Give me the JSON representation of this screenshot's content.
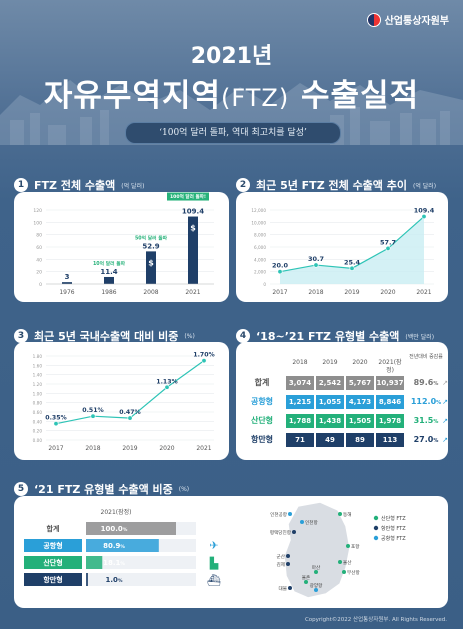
{
  "ministry": "산업통상자원부",
  "year_title": "2021년",
  "main_title_a": "자유무역지역",
  "main_title_b": "(FTZ)",
  "main_title_c": " 수출실적",
  "subtitle": "‘100억 달러 돌파, 역대 최고치를 달성’",
  "copyright": "Copyright©2022 산업통상자원부. All Rights Reserved.",
  "sections": [
    {
      "num": "1",
      "title": "FTZ 전체 수출액",
      "unit": "(억 달러)"
    },
    {
      "num": "2",
      "title": "최근 5년 FTZ 전체 수출액 추이",
      "unit": "(억 달러)"
    },
    {
      "num": "3",
      "title": "최근 5년 국내수출액 대비 비중",
      "unit": "(%)"
    },
    {
      "num": "4",
      "title": "‘18~’21 FTZ 유형별 수출액",
      "unit": "(백만 달러)"
    },
    {
      "num": "5",
      "title": "‘21 FTZ 유형별 수출액 비중",
      "unit": "(%)"
    }
  ],
  "chart_data": [
    {
      "type": "bar",
      "categories": [
        "1976",
        "1986",
        "2008",
        "2021"
      ],
      "values": [
        3,
        11.4,
        52.9,
        109.4
      ],
      "value_labels": [
        "3",
        "11.4",
        "52.9",
        "109.4"
      ],
      "ylim": [
        0,
        120
      ],
      "yticks": [
        "0",
        "20",
        "40",
        "60",
        "80",
        "100",
        "120"
      ],
      "annotations": [
        {
          "category": "1986",
          "text": "10억 달러 돌파"
        },
        {
          "category": "2008",
          "text": "50억 달러 돌파"
        },
        {
          "category": "2021",
          "text": "100억 달러 돌파!"
        }
      ],
      "colors": {
        "bar": "#1f3f68",
        "accent": "#27b27a"
      }
    },
    {
      "type": "area",
      "categories": [
        "2017",
        "2018",
        "2019",
        "2020",
        "2021"
      ],
      "values": [
        20.0,
        30.7,
        25.4,
        57.7,
        109.4
      ],
      "value_labels": [
        "20.0",
        "30.7",
        "25.4",
        "57.7",
        "109.4"
      ],
      "ylim": [
        0,
        120
      ],
      "yticks": [
        "0",
        "2,000",
        "4,000",
        "6,000",
        "8,000",
        "10,000",
        "12,000"
      ],
      "colors": {
        "line": "#2ec4b6",
        "area": "#c9eef2"
      }
    },
    {
      "type": "line",
      "categories": [
        "2017",
        "2018",
        "2019",
        "2020",
        "2021"
      ],
      "values": [
        0.35,
        0.51,
        0.47,
        1.13,
        1.7
      ],
      "value_labels": [
        "0.35%",
        "0.51%",
        "0.47%",
        "1.13%",
        "1.70%"
      ],
      "ylim": [
        0,
        1.8
      ],
      "yticks": [
        "0.00",
        "0.20",
        "0.40",
        "0.60",
        "0.80",
        "1.00",
        "1.20",
        "1.40",
        "1.60",
        "1.80"
      ],
      "colors": {
        "line": "#2ec4b6"
      }
    },
    {
      "type": "table",
      "columns": [
        "2018",
        "2019",
        "2020",
        "2021(잠정)",
        "전년대비 증감률"
      ],
      "rows": [
        {
          "label": "합계",
          "values": [
            "3,074",
            "2,542",
            "5,767",
            "10,937"
          ],
          "rate": "89.6",
          "rate_unit": "%"
        },
        {
          "label": "공항형",
          "values": [
            "1,215",
            "1,055",
            "4,173",
            "8,846"
          ],
          "rate": "112.0",
          "rate_unit": "%"
        },
        {
          "label": "산단형",
          "values": [
            "1,788",
            "1,438",
            "1,505",
            "1,978"
          ],
          "rate": "31.5",
          "rate_unit": "%"
        },
        {
          "label": "항만형",
          "values": [
            "71",
            "49",
            "89",
            "113"
          ],
          "rate": "27.0",
          "rate_unit": "%"
        }
      ],
      "colors": {
        "total": "#8e8e8e",
        "airport": "#2a9fd8",
        "industrial": "#23b07a",
        "port": "#1f3f68"
      }
    },
    {
      "type": "bar",
      "orientation": "horizontal",
      "header": "2021(잠정)",
      "categories": [
        "합계",
        "공항형",
        "산단형",
        "항만형"
      ],
      "values": [
        100.0,
        80.9,
        18.1,
        1.0
      ],
      "value_labels": [
        "100.0",
        "80.9",
        "18.1",
        "1.0"
      ],
      "value_unit": "%",
      "colors": {
        "total": "#8e8e8e",
        "airport": "#2a9fd8",
        "industrial": "#23b07a",
        "port": "#1f3f68"
      }
    }
  ],
  "map": {
    "industrial_zones": [
      "동해",
      "포항",
      "울산",
      "부산항",
      "마산",
      "율촌"
    ],
    "ports": [
      "평택당진항",
      "군산",
      "김제",
      "대불"
    ],
    "airports": [
      "인천공항",
      "인천항",
      "광양항"
    ],
    "legend": [
      "산단형 FTZ",
      "항만형 FTZ",
      "공항형 FTZ"
    ],
    "colors": {
      "industrial": "#23b07a",
      "port": "#1f3f68",
      "airport": "#2a9fd8"
    }
  }
}
